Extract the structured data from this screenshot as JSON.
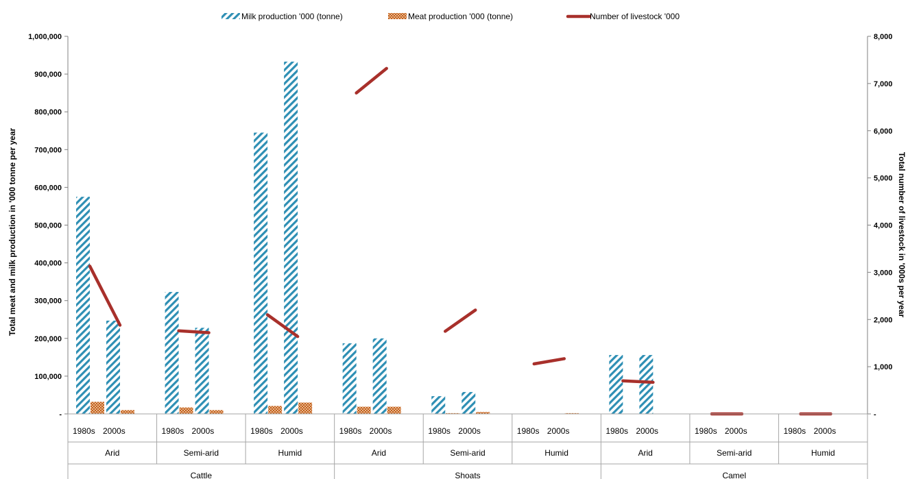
{
  "chart_data": {
    "type": "bar",
    "legend": {
      "position": "top",
      "items": [
        {
          "label": "Milk production '000  (tonne)",
          "kind": "milk"
        },
        {
          "label": "Meat production '000 (tonne)",
          "kind": "meat"
        },
        {
          "label": "Number of livestock '000",
          "kind": "livestock"
        }
      ]
    },
    "y_left": {
      "label": "Total meat and milk production in '000 tonne per year",
      "range": [
        0,
        1000000
      ],
      "ticks": [
        "-",
        "100,000",
        "200,000",
        "300,000",
        "400,000",
        "500,000",
        "600,000",
        "700,000",
        "800,000",
        "900,000",
        "1,000,000"
      ]
    },
    "y_right": {
      "label": "Total number of livestock in '000s per year",
      "range": [
        0,
        8000
      ],
      "ticks": [
        "-",
        "1,000",
        "2,000",
        "3,000",
        "4,000",
        "5,000",
        "6,000",
        "7,000",
        "8,000"
      ]
    },
    "periods": [
      "1980s",
      "2000s"
    ],
    "groups": [
      {
        "species": "Cattle",
        "zone": "Arid",
        "milk": [
          575000,
          247000
        ],
        "meat": [
          32000,
          10000
        ],
        "livestock": [
          3130,
          1880
        ]
      },
      {
        "species": "Cattle",
        "zone": "Semi-arid",
        "milk": [
          323000,
          228000
        ],
        "meat": [
          17000,
          10000
        ],
        "livestock": [
          1760,
          1720
        ]
      },
      {
        "species": "Cattle",
        "zone": "Humid",
        "milk": [
          745000,
          933000
        ],
        "meat": [
          21000,
          30000
        ],
        "livestock": [
          2100,
          1640
        ]
      },
      {
        "species": "Shoats",
        "zone": "Arid",
        "milk": [
          187000,
          200000
        ],
        "meat": [
          19000,
          19000
        ],
        "livestock": [
          6800,
          7320
        ]
      },
      {
        "species": "Shoats",
        "zone": "Semi-arid",
        "milk": [
          47000,
          58000
        ],
        "meat": [
          2000,
          5000
        ],
        "livestock": [
          1750,
          2200
        ]
      },
      {
        "species": "Shoats",
        "zone": "Humid",
        "milk": [
          0,
          0
        ],
        "meat": [
          0,
          2000
        ],
        "livestock": [
          1060,
          1170
        ]
      },
      {
        "species": "Camel",
        "zone": "Arid",
        "milk": [
          156000,
          156000
        ],
        "meat": [
          0,
          0
        ],
        "livestock": [
          700,
          670
        ]
      },
      {
        "species": "Camel",
        "zone": "Semi-arid",
        "milk": [
          0,
          0
        ],
        "meat": [
          0,
          0
        ],
        "livestock": [
          0,
          0
        ]
      },
      {
        "species": "Camel",
        "zone": "Humid",
        "milk": [
          0,
          0
        ],
        "meat": [
          0,
          0
        ],
        "livestock": [
          0,
          0
        ]
      }
    ],
    "species_labels": [
      "Cattle",
      "Shoats",
      "Camel"
    ],
    "colors": {
      "milk": "#2e8fb4",
      "meat": "#c0601a",
      "livestock": "#a8302b"
    },
    "grid": false
  }
}
